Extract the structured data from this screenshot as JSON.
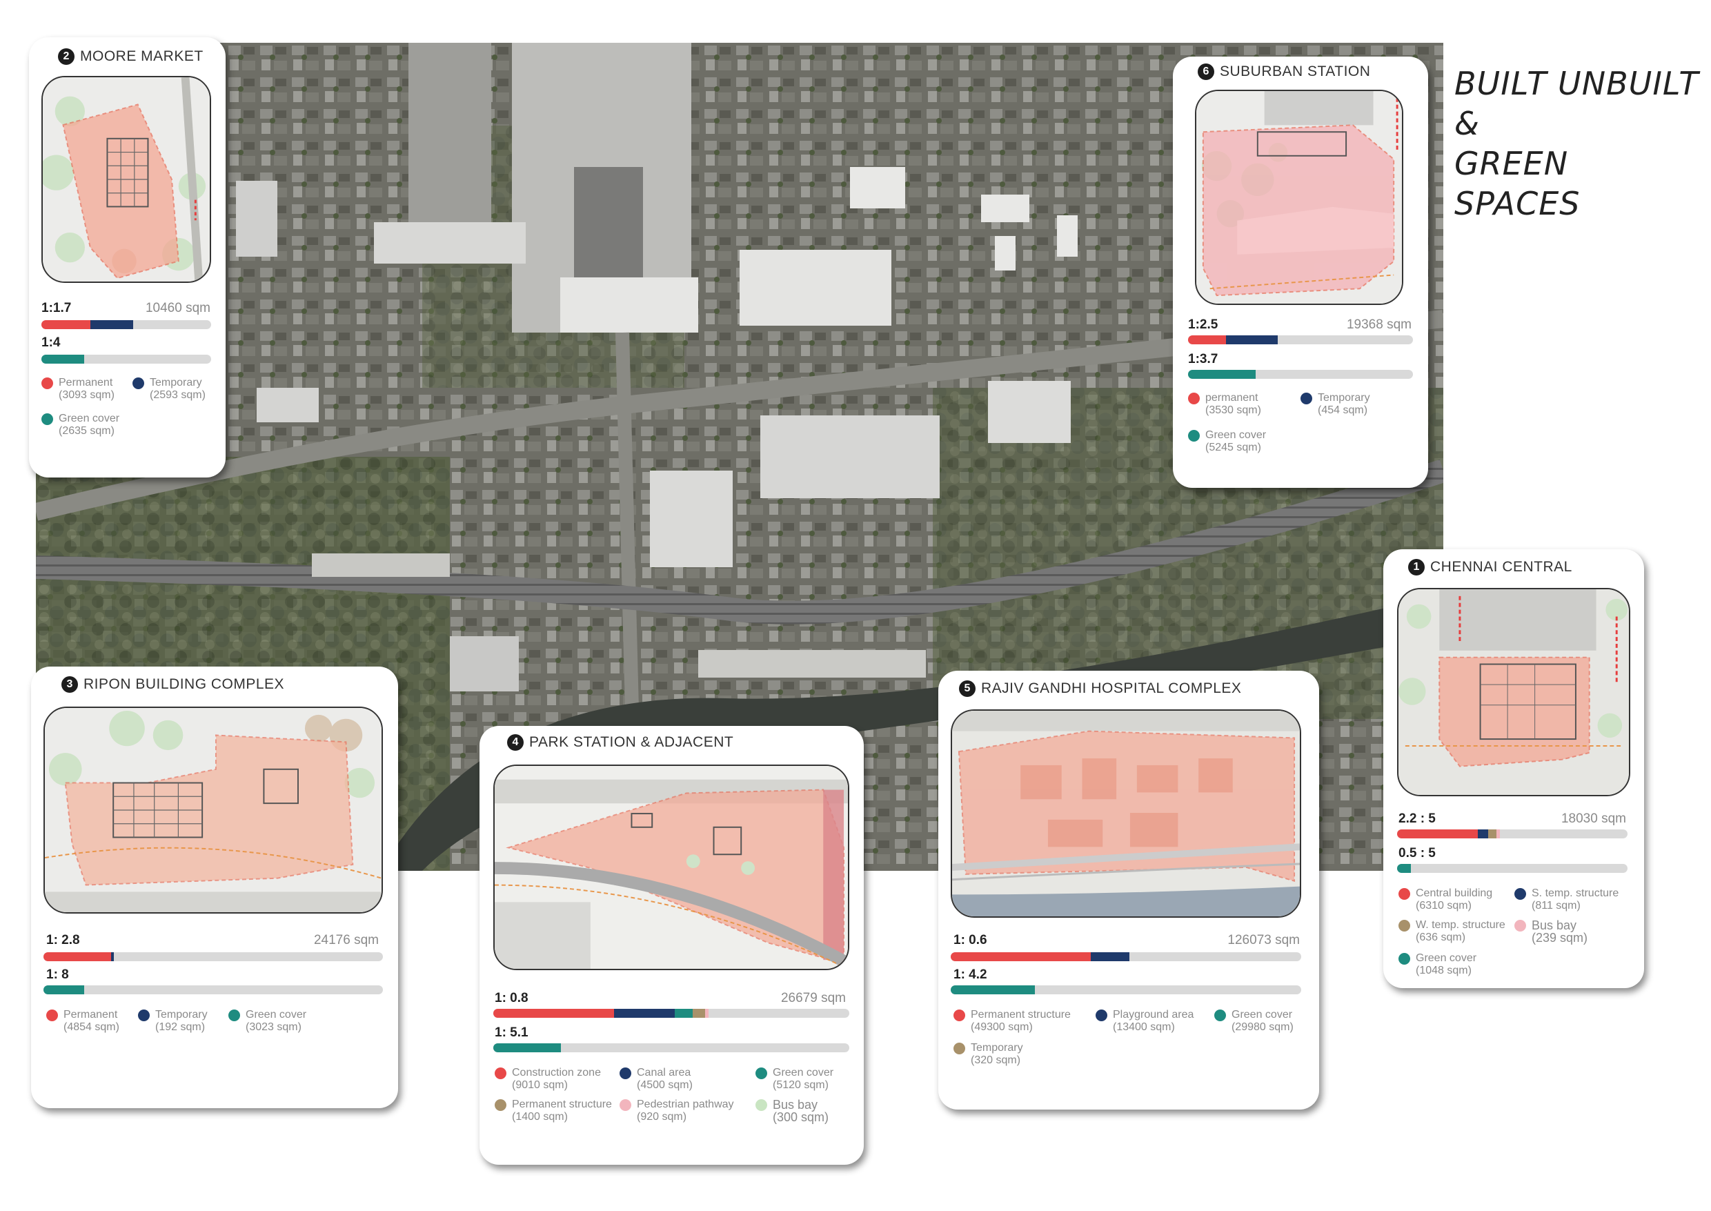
{
  "title": {
    "line1": "BUILT UNBUILT &",
    "line2": "GREEN SPACES"
  },
  "colors": {
    "permanent": "#e84848",
    "temporary": "#1f3a6b",
    "green_cover": "#1e8c80",
    "brown": "#a8916a",
    "pink": "#f2b5bd",
    "light_green": "#c9e5c2",
    "bar_bg": "#d9d9d9"
  },
  "cards": [
    {
      "key": "moore",
      "number": "2",
      "title": "MOORE MARKET",
      "built_ratio": "1:1.7",
      "area": "10460 sqm",
      "green_ratio": "1:4",
      "built_bar": [
        0.29,
        0.25
      ],
      "green_bar": 0.25,
      "legend": [
        {
          "label": "Permanent",
          "value": "(3093 sqm)",
          "color": "permanent"
        },
        {
          "label": "Temporary",
          "value": "(2593 sqm)",
          "color": "temporary"
        },
        {
          "label": "Green cover",
          "value": "(2635 sqm)",
          "color": "green_cover"
        }
      ]
    },
    {
      "key": "suburban",
      "number": "6",
      "title": "SUBURBAN STATION",
      "built_ratio": "1:2.5",
      "area": "19368 sqm",
      "green_ratio": "1:3.7",
      "built_bar": [
        0.17,
        0.23
      ],
      "green_bar": 0.3,
      "legend": [
        {
          "label": "permanent",
          "value": "(3530 sqm)",
          "color": "permanent"
        },
        {
          "label": "Temporary",
          "value": "(454 sqm)",
          "color": "temporary"
        },
        {
          "label": "Green cover",
          "value": "(5245 sqm)",
          "color": "green_cover"
        }
      ]
    },
    {
      "key": "chennai",
      "number": "1",
      "title": "CHENNAI CENTRAL",
      "built_ratio": "2.2 : 5",
      "area": "18030 sqm",
      "green_ratio": "0.5 : 5",
      "built_bar": [
        0.35,
        0.045,
        0.035,
        0.015
      ],
      "green_bar": 0.06,
      "legend": [
        {
          "label": "Central building",
          "value": "(6310 sqm)",
          "color": "permanent"
        },
        {
          "label": "S. temp. structure",
          "value": "(811 sqm)",
          "color": "temporary"
        },
        {
          "label": "W. temp. structure",
          "value": "(636 sqm)",
          "color": "brown"
        },
        {
          "label": "Bus bay",
          "value": "(239 sqm)",
          "color": "pink"
        },
        {
          "label": "Green cover",
          "value": "(1048 sqm)",
          "color": "green_cover"
        }
      ]
    },
    {
      "key": "ripon",
      "number": "3",
      "title": "RIPON BUILDING COMPLEX",
      "built_ratio": "1: 2.8",
      "area": "24176 sqm",
      "green_ratio": "1: 8",
      "built_bar": [
        0.2,
        0.008
      ],
      "green_bar": 0.12,
      "legend": [
        {
          "label": "Permanent",
          "value": "(4854 sqm)",
          "color": "permanent"
        },
        {
          "label": "Temporary",
          "value": "(192 sqm)",
          "color": "temporary"
        },
        {
          "label": "Green cover",
          "value": "(3023 sqm)",
          "color": "green_cover"
        }
      ]
    },
    {
      "key": "park",
      "number": "4",
      "title": "PARK STATION & ADJACENT",
      "built_ratio": "1: 0.8",
      "area": "26679 sqm",
      "green_ratio": "1: 5.1",
      "built_bar": [
        0.34,
        0.17,
        0.05,
        0.035,
        0.01
      ],
      "green_bar": 0.19,
      "legend": [
        {
          "label": "Construction zone",
          "value": "(9010 sqm)",
          "color": "permanent"
        },
        {
          "label": "Canal area",
          "value": "(4500 sqm)",
          "color": "temporary"
        },
        {
          "label": "Green cover",
          "value": "(5120 sqm)",
          "color": "green_cover"
        },
        {
          "label": "Permanent structure",
          "value": "(1400 sqm)",
          "color": "brown"
        },
        {
          "label": "Pedestrian pathway",
          "value": "(920 sqm)",
          "color": "pink"
        },
        {
          "label": "Bus bay",
          "value": "(300 sqm)",
          "color": "light_green"
        }
      ]
    },
    {
      "key": "rajiv",
      "number": "5",
      "title": "RAJIV GANDHI HOSPITAL COMPLEX",
      "built_ratio": "1: 0.6",
      "area": "126073 sqm",
      "green_ratio": "1: 4.2",
      "built_bar": [
        0.4,
        0.11
      ],
      "green_bar": 0.24,
      "legend": [
        {
          "label": "Permanent structure",
          "value": "(49300 sqm)",
          "color": "permanent"
        },
        {
          "label": "Playground area",
          "value": "(13400 sqm)",
          "color": "temporary"
        },
        {
          "label": "Green cover",
          "value": "(29980 sqm)",
          "color": "green_cover"
        },
        {
          "label": "Temporary",
          "value": "(320 sqm)",
          "color": "brown"
        }
      ]
    }
  ]
}
